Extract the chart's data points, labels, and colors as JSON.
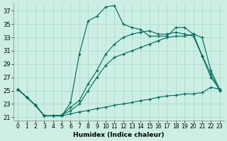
{
  "title": "",
  "xlabel": "Humidex (Indice chaleur)",
  "ylabel": "",
  "bg_color": "#cceee4",
  "line_color": "#006858",
  "xlim": [
    -0.5,
    23.5
  ],
  "ylim": [
    20.5,
    38.2
  ],
  "xticks": [
    0,
    1,
    2,
    3,
    4,
    5,
    6,
    7,
    8,
    9,
    10,
    11,
    12,
    13,
    14,
    15,
    16,
    17,
    18,
    19,
    20,
    21,
    22,
    23
  ],
  "yticks": [
    21,
    23,
    25,
    27,
    29,
    31,
    33,
    35,
    37
  ],
  "series": [
    [
      25.2,
      24.0,
      22.8,
      21.2,
      21.2,
      21.2,
      23.2,
      30.5,
      35.5,
      36.2,
      37.6,
      37.8,
      35.0,
      34.5,
      34.2,
      33.2,
      33.2,
      33.2,
      34.5,
      34.5,
      33.5,
      30.3,
      27.5,
      25.0
    ],
    [
      25.2,
      24.0,
      22.8,
      21.2,
      21.2,
      21.3,
      22.5,
      23.5,
      26.0,
      28.0,
      30.5,
      32.0,
      33.0,
      33.5,
      33.8,
      34.0,
      33.5,
      33.5,
      33.8,
      33.5,
      33.2,
      30.2,
      27.0,
      25.2
    ],
    [
      25.2,
      24.0,
      22.8,
      21.2,
      21.2,
      21.3,
      22.0,
      23.0,
      25.0,
      27.0,
      28.8,
      30.0,
      30.5,
      31.0,
      31.5,
      32.0,
      32.5,
      33.0,
      33.2,
      33.2,
      33.5,
      33.0,
      28.0,
      25.2
    ],
    [
      25.2,
      24.0,
      22.8,
      21.2,
      21.2,
      21.2,
      21.5,
      21.8,
      22.0,
      22.3,
      22.5,
      22.8,
      23.0,
      23.2,
      23.5,
      23.7,
      24.0,
      24.2,
      24.3,
      24.5,
      24.5,
      24.7,
      25.5,
      25.2
    ]
  ]
}
